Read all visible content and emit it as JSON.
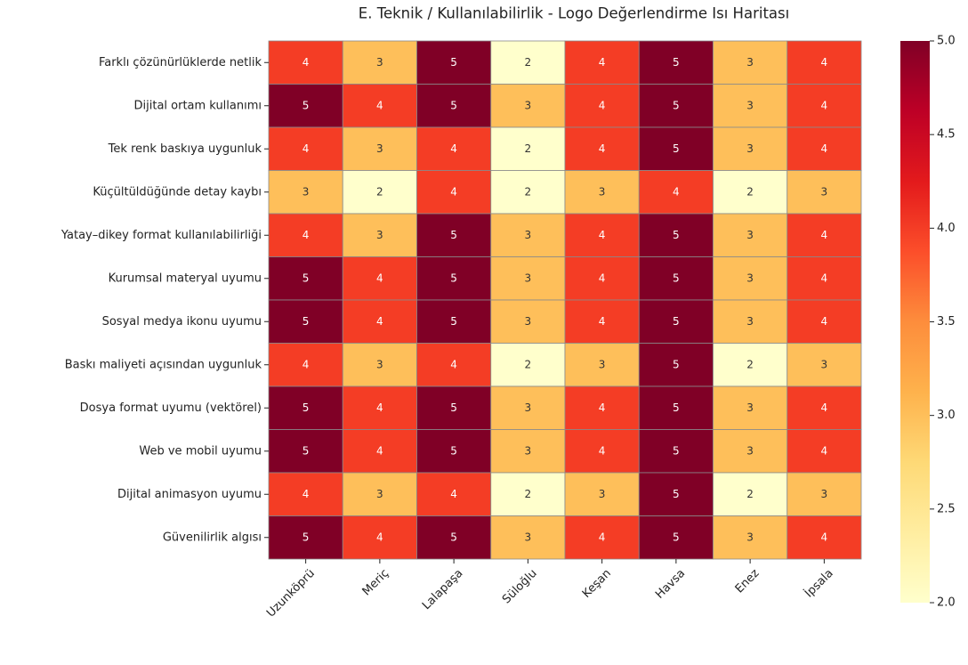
{
  "chart_data": {
    "type": "heatmap",
    "title": "E. Teknik / Kullanılabilirlik - Logo Değerlendirme Isı Haritası",
    "categories": [
      "Uzunköprü",
      "Meriç",
      "Lalapaşa",
      "Süloğlu",
      "Keşan",
      "Havsa",
      "Enez",
      "İpsala"
    ],
    "rows": [
      "Farklı çözünürlüklerde netlik",
      "Dijital ortam kullanımı",
      "Tek renk baskıya uygunluk",
      "Küçültüldüğünde detay kaybı",
      "Yatay–dikey format kullanılabilirliği",
      "Kurumsal materyal uyumu",
      "Sosyal medya ikonu uyumu",
      "Baskı maliyeti açısından uygunluk",
      "Dosya format uyumu (vektörel)",
      "Web ve mobil uyumu",
      "Dijital animasyon uyumu",
      "Güvenilirlik algısı"
    ],
    "values": [
      [
        4,
        3,
        5,
        2,
        4,
        5,
        3,
        4
      ],
      [
        5,
        4,
        5,
        3,
        4,
        5,
        3,
        4
      ],
      [
        4,
        3,
        4,
        2,
        4,
        5,
        3,
        4
      ],
      [
        3,
        2,
        4,
        2,
        3,
        4,
        2,
        3
      ],
      [
        4,
        3,
        5,
        3,
        4,
        5,
        3,
        4
      ],
      [
        5,
        4,
        5,
        3,
        4,
        5,
        3,
        4
      ],
      [
        5,
        4,
        5,
        3,
        4,
        5,
        3,
        4
      ],
      [
        4,
        3,
        4,
        2,
        3,
        5,
        2,
        3
      ],
      [
        5,
        4,
        5,
        3,
        4,
        5,
        3,
        4
      ],
      [
        5,
        4,
        5,
        3,
        4,
        5,
        3,
        4
      ],
      [
        4,
        3,
        4,
        2,
        3,
        5,
        2,
        3
      ],
      [
        5,
        4,
        5,
        3,
        4,
        5,
        3,
        4
      ]
    ],
    "colormap": [
      "#ffffcc",
      "#ffeda0",
      "#fed976",
      "#feb24c",
      "#fd8d3c",
      "#fc4e2a",
      "#e31a1c",
      "#bd0026",
      "#800026"
    ],
    "clim": [
      2,
      5
    ],
    "cticks": [
      {
        "value": 2,
        "label": "2.0"
      },
      2.5,
      {
        "value": 3,
        "label": "3.0"
      },
      3.5,
      {
        "value": 4,
        "label": "4.0"
      },
      4.5,
      {
        "value": 5,
        "label": "5.0"
      }
    ]
  }
}
